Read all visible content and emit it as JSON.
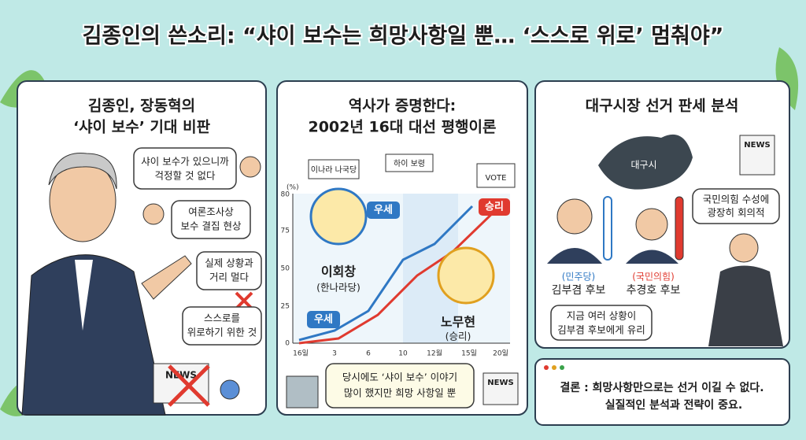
{
  "header": {
    "title": "김종인의 쓴소리: “샤이 보수는 희망사항일 뿐… ‘스스로 위로’ 멈춰야”"
  },
  "panel1": {
    "heading": [
      "김종인, 장동혁의",
      "‘샤이 보수’ 기대 비판"
    ],
    "bubbles": [
      [
        "샤이 보수가 있으니까",
        "걱정할 것 없다"
      ],
      [
        "여론조사상",
        "보수 결집 현상"
      ],
      [
        "실제 상황과",
        "거리 멀다"
      ],
      [
        "스스로를",
        "위로하기 위한 것"
      ]
    ],
    "news": "NEWS"
  },
  "panel2": {
    "heading": [
      "역사가 증명한다:",
      "2002년 16대 대선 평행이론"
    ],
    "signs": [
      "이나라 나국당",
      "하이 보령",
      "VOTE"
    ],
    "chart": {
      "unit": "(%)",
      "y_labels": [
        "80",
        "75",
        "50",
        "25",
        "0"
      ],
      "x_labels": [
        "16일",
        "3",
        "6",
        "10",
        "12월",
        "15일",
        "20일"
      ]
    },
    "tags": {
      "lead_early": "우세",
      "lead_late": "우세",
      "win": "승리"
    },
    "candidate1": {
      "name": "이회창",
      "party": "(한나라당)"
    },
    "candidate2": {
      "name": "노무현",
      "result": "(승리)"
    },
    "bubble": [
      "당시에도 ‘샤이 보수’ 이야기",
      "많이 했지만 희망 사항일 뿐"
    ],
    "news": "NEWS"
  },
  "panel3": {
    "heading": "대구시장 선거 판세 분석",
    "map_label": "대구시",
    "news": "NEWS",
    "bubble_top": [
      "국민의힘 수성에",
      "광장히 회의적"
    ],
    "candidate1": {
      "party": "(민주당)",
      "name": "김부겸 후보"
    },
    "candidate2": {
      "party": "(국민의힘)",
      "name": "추경호 후보"
    },
    "bubble_bottom": [
      "지금 여러 상황이",
      "김부겸 후보에게 유리"
    ]
  },
  "conclusion": [
    "결론 : 희망사항만으로는 선거 이길 수 없다.",
    "실질적인 분석과 전략이 중요."
  ]
}
